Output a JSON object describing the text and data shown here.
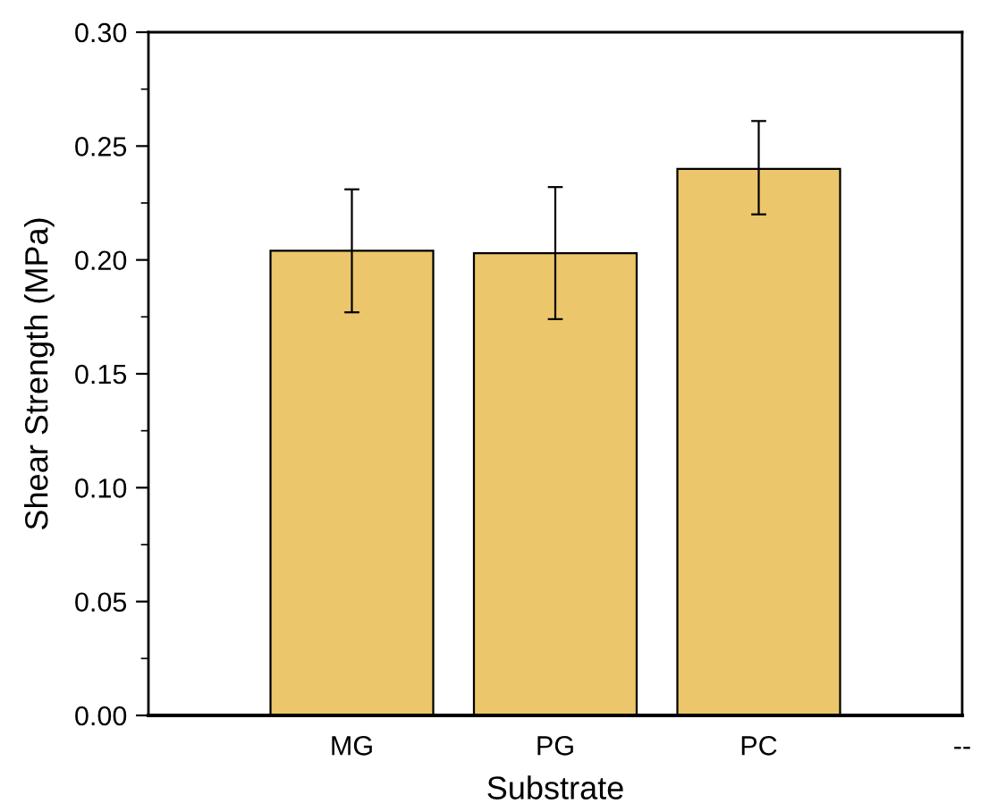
{
  "chart_data": {
    "type": "bar",
    "xlabel": "Substrate",
    "ylabel": "Shear Strength (MPa)",
    "categories": [
      "MG",
      "PG",
      "PC",
      "--"
    ],
    "values": [
      0.204,
      0.203,
      0.24,
      null
    ],
    "errors": [
      [
        0.177,
        0.231
      ],
      [
        0.174,
        0.232
      ],
      [
        0.22,
        0.261
      ],
      null
    ],
    "color": "#ecc66a",
    "ylim": [
      0,
      0.3
    ],
    "yticks": [
      {
        "value": 0,
        "label": "0.00"
      },
      {
        "value": 0.05,
        "label": "0.05"
      },
      {
        "value": 0.1,
        "label": "0.10"
      },
      {
        "value": 0.15,
        "label": "0.15"
      },
      {
        "value": 0.2,
        "label": "0.20"
      },
      {
        "value": 0.25,
        "label": "0.25"
      },
      {
        "value": 0.3,
        "label": "0.30"
      }
    ],
    "grid": false,
    "legend": false
  }
}
